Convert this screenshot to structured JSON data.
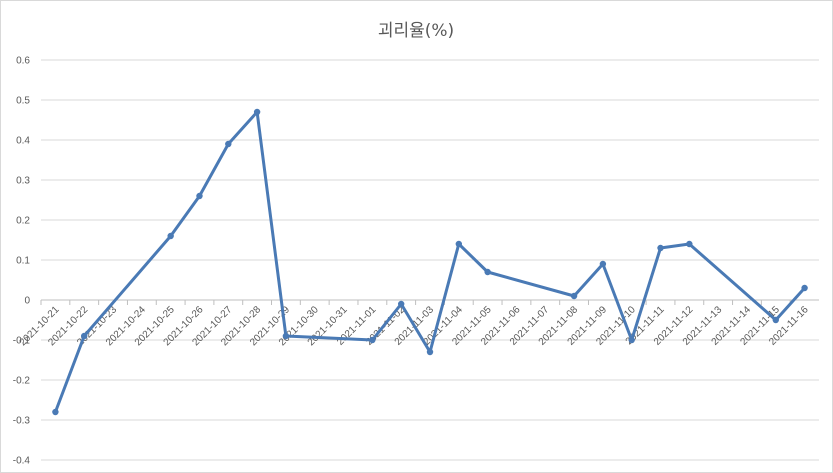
{
  "chart_data": {
    "type": "line",
    "title": "괴리율(%)",
    "xlabel": "",
    "ylabel": "",
    "ylim": [
      -0.4,
      0.6
    ],
    "yticks": [
      0.6,
      0.5,
      0.4,
      0.3,
      0.2,
      0.1,
      0,
      -0.1,
      -0.2,
      -0.3,
      -0.4
    ],
    "ytick_labels": [
      "0.6",
      "0.5",
      "0.4",
      "0.3",
      "0.2",
      "0.1",
      "0",
      "-0.1",
      "-0.2",
      "-0.3",
      "-0.4"
    ],
    "grid": true,
    "legend": "none",
    "categories": [
      "2021-10-21",
      "2021-10-22",
      "2021-10-23",
      "2021-10-24",
      "2021-10-25",
      "2021-10-26",
      "2021-10-27",
      "2021-10-28",
      "2021-10-29",
      "2021-10-30",
      "2021-10-31",
      "2021-11-01",
      "2021-11-02",
      "2021-11-03",
      "2021-11-04",
      "2021-11-05",
      "2021-11-06",
      "2021-11-07",
      "2021-11-08",
      "2021-11-09",
      "2021-11-10",
      "2021-11-11",
      "2021-11-12",
      "2021-11-13",
      "2021-11-14",
      "2021-11-15",
      "2021-11-16"
    ],
    "series": [
      {
        "color": "#4a7ab5",
        "points": [
          {
            "x": "2021-10-21",
            "y": -0.28
          },
          {
            "x": "2021-10-22",
            "y": -0.09
          },
          {
            "x": "2021-10-25",
            "y": 0.16
          },
          {
            "x": "2021-10-26",
            "y": 0.26
          },
          {
            "x": "2021-10-27",
            "y": 0.39
          },
          {
            "x": "2021-10-28",
            "y": 0.47
          },
          {
            "x": "2021-10-29",
            "y": -0.09
          },
          {
            "x": "2021-11-01",
            "y": -0.1
          },
          {
            "x": "2021-11-02",
            "y": -0.01
          },
          {
            "x": "2021-11-03",
            "y": -0.13
          },
          {
            "x": "2021-11-04",
            "y": 0.14
          },
          {
            "x": "2021-11-05",
            "y": 0.07
          },
          {
            "x": "2021-11-08",
            "y": 0.01
          },
          {
            "x": "2021-11-09",
            "y": 0.09
          },
          {
            "x": "2021-11-10",
            "y": -0.1
          },
          {
            "x": "2021-11-11",
            "y": 0.13
          },
          {
            "x": "2021-11-12",
            "y": 0.14
          },
          {
            "x": "2021-11-15",
            "y": -0.05
          },
          {
            "x": "2021-11-16",
            "y": 0.03
          }
        ]
      }
    ]
  }
}
